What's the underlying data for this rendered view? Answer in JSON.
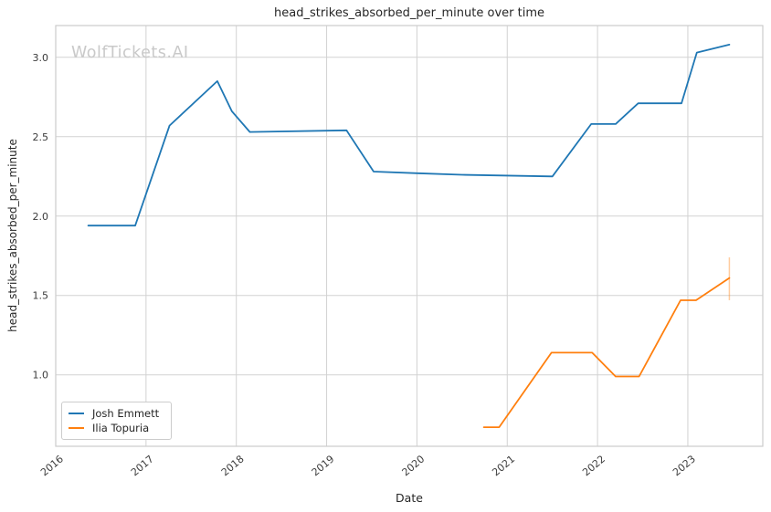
{
  "figure": {
    "title": "head_strikes_absorbed_per_minute over time",
    "watermark": "WolfTickets.AI",
    "xlabel": "Date",
    "ylabel": "head_strikes_absorbed_per_minute"
  },
  "legend": {
    "items": [
      {
        "label": "Josh Emmett",
        "color": "#1f77b4"
      },
      {
        "label": "Ilia Topuria",
        "color": "#ff7f0e"
      }
    ]
  },
  "chart_data": {
    "type": "line",
    "title": "head_strikes_absorbed_per_minute over time",
    "xlabel": "Date",
    "ylabel": "head_strikes_absorbed_per_minute",
    "x_unit": "decimal_year",
    "xlim": [
      2016.0,
      2023.83
    ],
    "ylim": [
      0.55,
      3.2
    ],
    "x_ticks": [
      2016,
      2017,
      2018,
      2019,
      2020,
      2021,
      2022,
      2023
    ],
    "y_ticks": [
      1.0,
      1.5,
      2.0,
      2.5,
      3.0
    ],
    "grid": true,
    "legend_position": "lower left",
    "series": [
      {
        "name": "Josh Emmett",
        "color": "#1f77b4",
        "points": [
          [
            2016.36,
            1.94
          ],
          [
            2016.88,
            1.94
          ],
          [
            2017.26,
            2.57
          ],
          [
            2017.79,
            2.85
          ],
          [
            2017.95,
            2.66
          ],
          [
            2018.15,
            2.53
          ],
          [
            2019.22,
            2.54
          ],
          [
            2019.52,
            2.28
          ],
          [
            2020.0,
            2.27
          ],
          [
            2020.5,
            2.26
          ],
          [
            2021.5,
            2.25
          ],
          [
            2021.93,
            2.58
          ],
          [
            2022.2,
            2.58
          ],
          [
            2022.45,
            2.71
          ],
          [
            2022.93,
            2.71
          ],
          [
            2023.1,
            3.03
          ],
          [
            2023.46,
            3.08
          ]
        ]
      },
      {
        "name": "Ilia Topuria",
        "color": "#ff7f0e",
        "points": [
          [
            2020.74,
            0.67
          ],
          [
            2020.91,
            0.67
          ],
          [
            2021.49,
            1.14
          ],
          [
            2021.94,
            1.14
          ],
          [
            2022.2,
            0.99
          ],
          [
            2022.46,
            0.99
          ],
          [
            2022.92,
            1.47
          ],
          [
            2023.09,
            1.47
          ],
          [
            2023.46,
            1.61
          ]
        ],
        "error_bar": {
          "x": 2023.46,
          "y_low": 1.47,
          "y_high": 1.74
        }
      }
    ]
  },
  "style": {
    "grid_color": "#d2d2d2",
    "spine_color": "#cccccc",
    "tick_label_color": "#3b3b3b",
    "text_color": "#262626",
    "watermark_color": "#c9c9c9",
    "background": "#ffffff"
  }
}
